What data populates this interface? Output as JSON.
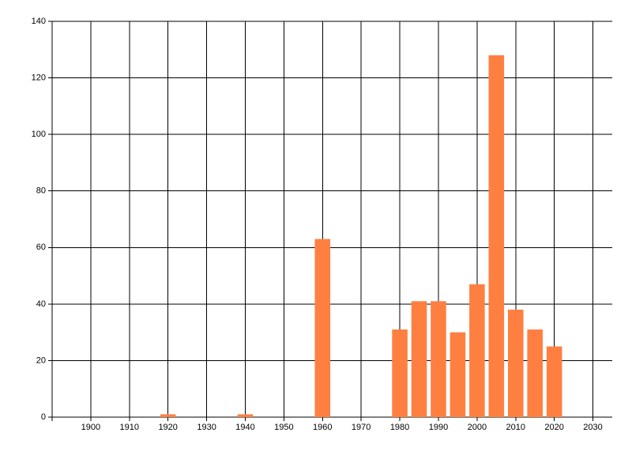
{
  "chart_data": {
    "type": "bar",
    "x": [
      1920,
      1940,
      1960,
      1980,
      1985,
      1990,
      1995,
      2000,
      2005,
      2010,
      2015,
      2020
    ],
    "values": [
      1,
      1,
      63,
      31,
      41,
      41,
      30,
      47,
      128,
      38,
      31,
      25
    ],
    "color": "#ff7f41",
    "xlim": [
      1890,
      2035
    ],
    "xticks": [
      1900,
      1910,
      1920,
      1930,
      1940,
      1950,
      1960,
      1970,
      1980,
      1990,
      2000,
      2010,
      2020,
      2030
    ],
    "ylim": [
      0,
      140
    ],
    "yticks": [
      0,
      20,
      40,
      60,
      80,
      100,
      120,
      140
    ],
    "grid": true
  }
}
